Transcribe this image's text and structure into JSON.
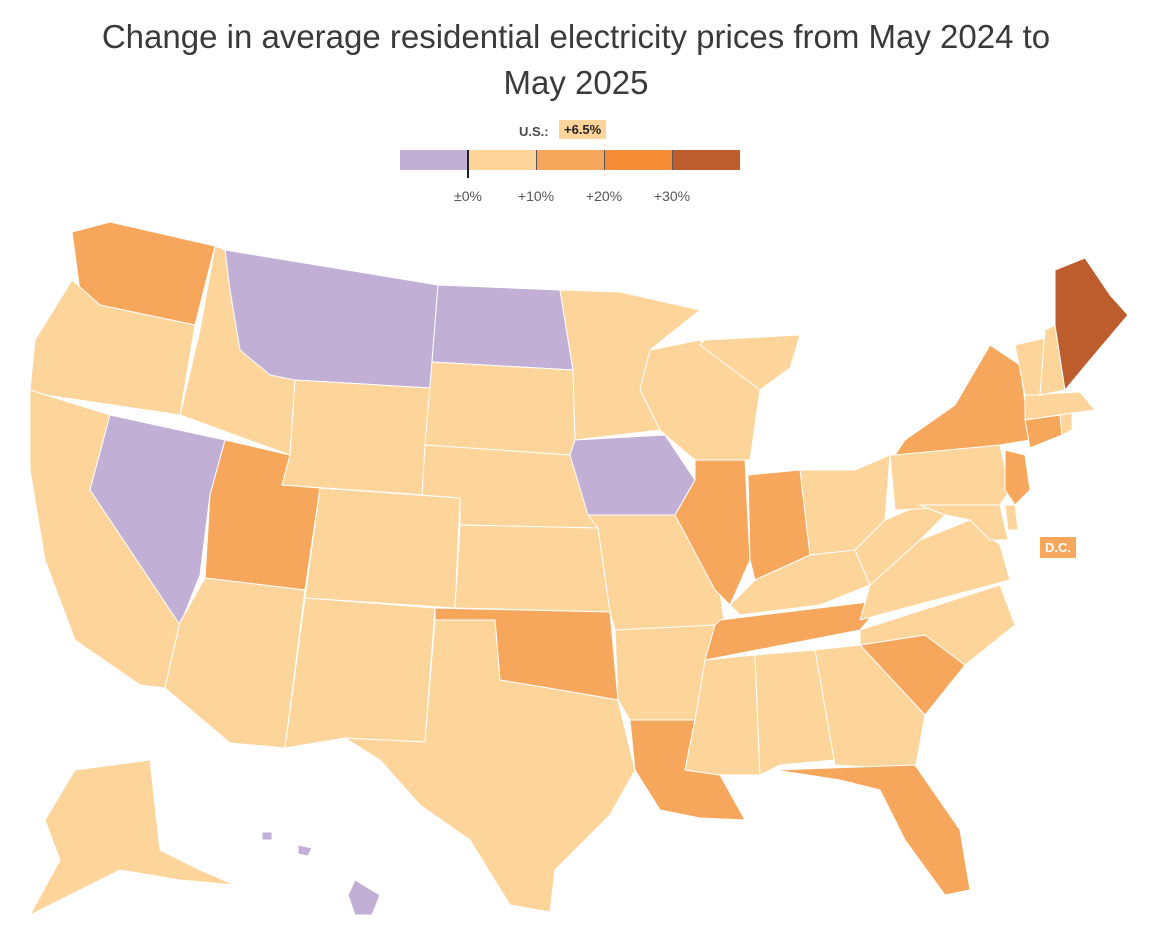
{
  "title_line1": "Change in average residential electricity prices from May 2024 to",
  "title_line2": "May 2025",
  "us_label": "U.S.:",
  "us_value": "+6.5%",
  "legend": {
    "labels": [
      "±0%",
      "+10%",
      "+20%",
      "+30%"
    ],
    "colors": {
      "decrease": "#c1afd6",
      "0_10": "#fdd49a",
      "10_20": "#f6a75b",
      "20_30": "#f58c36",
      "30_plus": "#bd5c2c"
    }
  },
  "dc_label": "D.C.",
  "states": {
    "WA": "10_20",
    "OR": "0_10",
    "CA": "0_10",
    "NV": "decrease",
    "ID": "0_10",
    "MT": "decrease",
    "WY": "0_10",
    "UT": "10_20",
    "AZ": "0_10",
    "CO": "0_10",
    "NM": "0_10",
    "ND": "decrease",
    "SD": "0_10",
    "NE": "0_10",
    "KS": "0_10",
    "OK": "10_20",
    "TX": "0_10",
    "MN": "0_10",
    "IA": "decrease",
    "MO": "0_10",
    "AR": "0_10",
    "LA": "10_20",
    "WI": "0_10",
    "IL": "10_20",
    "MI": "0_10",
    "IN": "10_20",
    "OH": "0_10",
    "KY": "0_10",
    "TN": "10_20",
    "MS": "0_10",
    "AL": "0_10",
    "GA": "0_10",
    "FL": "10_20",
    "SC": "10_20",
    "NC": "0_10",
    "VA": "0_10",
    "WV": "0_10",
    "PA": "0_10",
    "NY": "10_20",
    "NJ": "10_20",
    "DE": "0_10",
    "MD": "0_10",
    "CT": "10_20",
    "RI": "0_10",
    "MA": "0_10",
    "VT": "0_10",
    "NH": "0_10",
    "ME": "30_plus",
    "AK": "0_10",
    "HI": "decrease",
    "DC": "10_20"
  }
}
